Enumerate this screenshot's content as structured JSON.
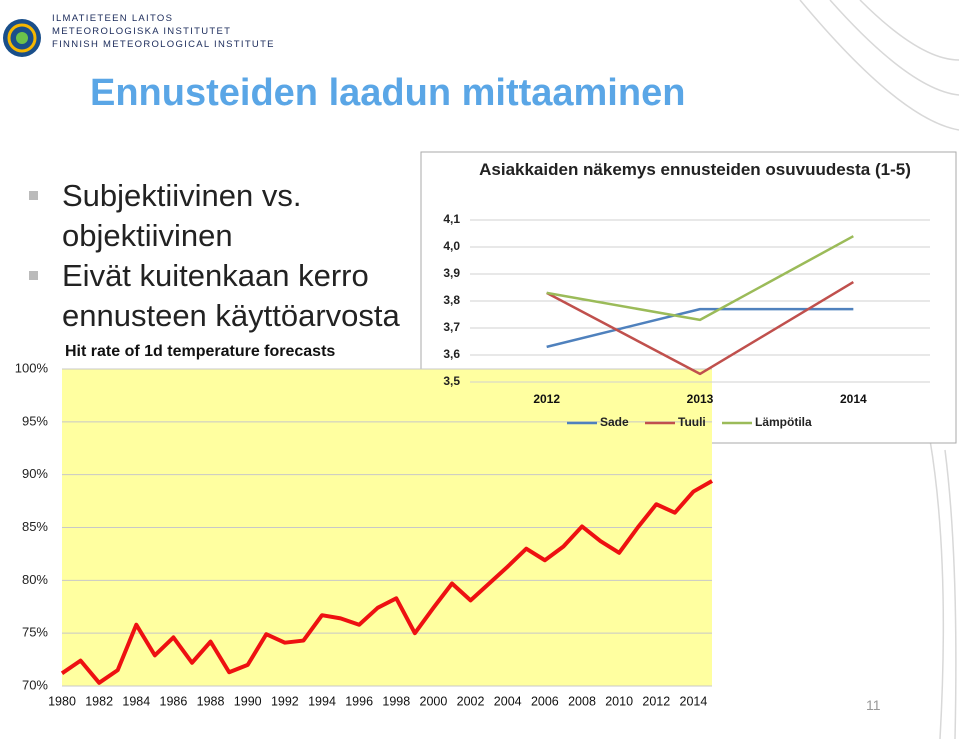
{
  "logo": {
    "line1": "ILMATIETEEN LAITOS",
    "line2": "METEOROLOGISKA INSTITUTET",
    "line3": "FINNISH METEOROLOGICAL INSTITUTE"
  },
  "title": "Ennusteiden laadun mittaaminen",
  "bullets": [
    "Subjektiivinen vs. objektiivinen",
    "Eivät kuitenkaan kerro ennusteen käyttöarvosta"
  ],
  "page_number": "11",
  "chart_data": [
    {
      "type": "line",
      "title": "Hit rate of 1d temperature forecasts",
      "color": "#ee1111",
      "plot_background": "#ffffa0",
      "grid": true,
      "x": [
        1980,
        1981,
        1982,
        1983,
        1984,
        1985,
        1986,
        1987,
        1988,
        1989,
        1990,
        1991,
        1992,
        1993,
        1994,
        1995,
        1996,
        1997,
        1998,
        1999,
        2000,
        2001,
        2002,
        2003,
        2004,
        2005,
        2006,
        2007,
        2008,
        2009,
        2010,
        2011,
        2012,
        2013,
        2014,
        2015
      ],
      "values": [
        71.2,
        72.4,
        70.3,
        71.5,
        75.8,
        72.9,
        74.6,
        72.2,
        74.2,
        71.3,
        72.0,
        74.9,
        74.1,
        74.3,
        76.7,
        76.4,
        75.8,
        77.4,
        78.3,
        75.0,
        77.4,
        79.7,
        78.1,
        79.7,
        81.3,
        83.0,
        81.9,
        83.2,
        85.1,
        83.7,
        82.6,
        85.0,
        87.2,
        86.4,
        88.4,
        89.4
      ],
      "xlim": [
        1980,
        2015
      ],
      "xticks": [
        1980,
        1982,
        1984,
        1986,
        1988,
        1990,
        1992,
        1994,
        1996,
        1998,
        2000,
        2002,
        2004,
        2006,
        2008,
        2010,
        2012,
        2014
      ],
      "ylim": [
        70,
        100
      ],
      "yticks": [
        {
          "value": 70,
          "label": "70%"
        },
        {
          "value": 75,
          "label": "75%"
        },
        {
          "value": 80,
          "label": "80%"
        },
        {
          "value": 85,
          "label": "85%"
        },
        {
          "value": 90,
          "label": "90%"
        },
        {
          "value": 95,
          "label": "95%"
        },
        {
          "value": 100,
          "label": "100%"
        }
      ]
    },
    {
      "type": "line",
      "title": "Asiakkaiden näkemys ennusteiden osuvuudesta (1-5)",
      "grid": true,
      "legend": "bottom",
      "categories": [
        "2012",
        "2013",
        "2014"
      ],
      "series": [
        {
          "name": "Sade",
          "color": "#4f81bd",
          "values": [
            3.63,
            3.77,
            3.77
          ]
        },
        {
          "name": "Tuuli",
          "color": "#c0504d",
          "values": [
            3.83,
            3.53,
            3.87
          ]
        },
        {
          "name": "Lämpötila",
          "color": "#9bbb59",
          "values": [
            3.83,
            3.73,
            4.04
          ]
        }
      ],
      "ylim": [
        3.5,
        4.1
      ],
      "yticks": [
        {
          "value": 3.5,
          "label": "3,5"
        },
        {
          "value": 3.6,
          "label": "3,6"
        },
        {
          "value": 3.7,
          "label": "3,7"
        },
        {
          "value": 3.8,
          "label": "3,8"
        },
        {
          "value": 3.9,
          "label": "3,9"
        },
        {
          "value": 4.0,
          "label": "4,0"
        },
        {
          "value": 4.1,
          "label": "4,1"
        }
      ]
    }
  ]
}
